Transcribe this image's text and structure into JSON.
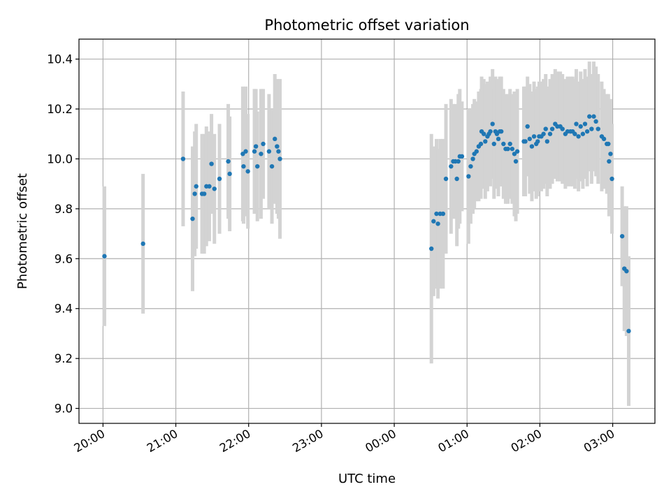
{
  "chart_data": {
    "type": "scatter",
    "title": "Photometric offset variation",
    "xlabel": "UTC time",
    "ylabel": "Photometric offset",
    "x_axis": {
      "kind": "time",
      "units": "hours UTC (values past 24 are the following day)",
      "ticks": [
        {
          "value": 20,
          "label": "20:00"
        },
        {
          "value": 21,
          "label": "21:00"
        },
        {
          "value": 22,
          "label": "22:00"
        },
        {
          "value": 23,
          "label": "23:00"
        },
        {
          "value": 24,
          "label": "00:00"
        },
        {
          "value": 25,
          "label": "01:00"
        },
        {
          "value": 26,
          "label": "02:00"
        },
        {
          "value": 27,
          "label": "03:00"
        }
      ],
      "range": [
        19.67,
        27.58
      ]
    },
    "y_axis": {
      "ticks": [
        {
          "value": 9.0,
          "label": "9.0"
        },
        {
          "value": 9.2,
          "label": "9.2"
        },
        {
          "value": 9.4,
          "label": "9.4"
        },
        {
          "value": 9.6,
          "label": "9.6"
        },
        {
          "value": 9.8,
          "label": "9.8"
        },
        {
          "value": 10.0,
          "label": "10.0"
        },
        {
          "value": 10.2,
          "label": "10.2"
        },
        {
          "value": 10.4,
          "label": "10.4"
        }
      ],
      "range": [
        8.94,
        10.48
      ]
    },
    "grid": true,
    "colors": {
      "points": "#1f77b4",
      "error_bars": "#d3d3d3",
      "grid": "#b0b0b0"
    },
    "series": [
      {
        "points": [
          [
            20.02,
            9.61,
            0.28
          ],
          [
            20.55,
            9.66,
            0.28
          ],
          [
            21.1,
            10.0,
            0.27
          ],
          [
            21.23,
            9.76,
            0.29
          ],
          [
            21.26,
            9.86,
            0.25
          ],
          [
            21.28,
            9.89,
            0.25
          ],
          [
            21.36,
            9.86,
            0.24
          ],
          [
            21.39,
            9.86,
            0.24
          ],
          [
            21.42,
            9.89,
            0.24
          ],
          [
            21.46,
            9.89,
            0.22
          ],
          [
            21.49,
            9.98,
            0.2
          ],
          [
            21.53,
            9.88,
            0.22
          ],
          [
            21.6,
            9.92,
            0.22
          ],
          [
            21.72,
            9.99,
            0.23
          ],
          [
            21.74,
            9.94,
            0.23
          ],
          [
            21.92,
            10.02,
            0.27
          ],
          [
            21.93,
            9.97,
            0.23
          ],
          [
            21.96,
            10.03,
            0.26
          ],
          [
            21.99,
            9.95,
            0.23
          ],
          [
            22.08,
            10.03,
            0.25
          ],
          [
            22.1,
            10.05,
            0.23
          ],
          [
            22.12,
            9.97,
            0.22
          ],
          [
            22.17,
            10.02,
            0.26
          ],
          [
            22.2,
            10.06,
            0.22
          ],
          [
            22.28,
            10.03,
            0.23
          ],
          [
            22.32,
            9.97,
            0.23
          ],
          [
            22.36,
            10.08,
            0.26
          ],
          [
            22.39,
            10.05,
            0.27
          ],
          [
            22.41,
            10.03,
            0.27
          ],
          [
            22.43,
            10.0,
            0.32
          ],
          [
            24.51,
            9.64,
            0.46
          ],
          [
            24.54,
            9.75,
            0.3
          ],
          [
            24.58,
            9.78,
            0.3
          ],
          [
            24.6,
            9.74,
            0.3
          ],
          [
            24.63,
            9.78,
            0.3
          ],
          [
            24.67,
            9.78,
            0.3
          ],
          [
            24.71,
            9.92,
            0.3
          ],
          [
            24.78,
            9.97,
            0.27
          ],
          [
            24.81,
            9.99,
            0.23
          ],
          [
            24.84,
            9.99,
            0.23
          ],
          [
            24.86,
            9.92,
            0.27
          ],
          [
            24.88,
            9.99,
            0.27
          ],
          [
            24.9,
            10.01,
            0.27
          ],
          [
            24.93,
            10.01,
            0.22
          ],
          [
            25.02,
            9.93,
            0.27
          ],
          [
            25.05,
            9.97,
            0.23
          ],
          [
            25.08,
            10.0,
            0.22
          ],
          [
            25.1,
            10.02,
            0.22
          ],
          [
            25.13,
            10.03,
            0.2
          ],
          [
            25.16,
            10.05,
            0.22
          ],
          [
            25.19,
            10.06,
            0.22
          ],
          [
            25.2,
            10.11,
            0.22
          ],
          [
            25.23,
            10.1,
            0.22
          ],
          [
            25.25,
            10.07,
            0.23
          ],
          [
            25.28,
            10.09,
            0.22
          ],
          [
            25.3,
            10.1,
            0.2
          ],
          [
            25.32,
            10.11,
            0.22
          ],
          [
            25.35,
            10.14,
            0.22
          ],
          [
            25.37,
            10.06,
            0.22
          ],
          [
            25.39,
            10.11,
            0.22
          ],
          [
            25.41,
            10.1,
            0.22
          ],
          [
            25.43,
            10.08,
            0.23
          ],
          [
            25.45,
            10.11,
            0.22
          ],
          [
            25.47,
            10.11,
            0.22
          ],
          [
            25.5,
            10.06,
            0.22
          ],
          [
            25.53,
            10.04,
            0.22
          ],
          [
            25.56,
            10.04,
            0.22
          ],
          [
            25.59,
            10.06,
            0.22
          ],
          [
            25.62,
            10.04,
            0.22
          ],
          [
            25.65,
            10.02,
            0.25
          ],
          [
            25.67,
            9.99,
            0.24
          ],
          [
            25.69,
            10.03,
            0.25
          ],
          [
            25.78,
            10.07,
            0.22
          ],
          [
            25.8,
            10.07,
            0.22
          ],
          [
            25.83,
            10.13,
            0.2
          ],
          [
            25.86,
            10.08,
            0.22
          ],
          [
            25.89,
            10.05,
            0.22
          ],
          [
            25.92,
            10.09,
            0.22
          ],
          [
            25.95,
            10.06,
            0.22
          ],
          [
            25.97,
            10.07,
            0.22
          ],
          [
            25.99,
            10.09,
            0.22
          ],
          [
            26.02,
            10.09,
            0.22
          ],
          [
            26.05,
            10.1,
            0.22
          ],
          [
            26.08,
            10.12,
            0.22
          ],
          [
            26.1,
            10.07,
            0.22
          ],
          [
            26.14,
            10.1,
            0.22
          ],
          [
            26.17,
            10.12,
            0.22
          ],
          [
            26.21,
            10.14,
            0.22
          ],
          [
            26.24,
            10.13,
            0.22
          ],
          [
            26.28,
            10.13,
            0.22
          ],
          [
            26.31,
            10.12,
            0.22
          ],
          [
            26.35,
            10.1,
            0.22
          ],
          [
            26.38,
            10.11,
            0.22
          ],
          [
            26.42,
            10.11,
            0.22
          ],
          [
            26.45,
            10.11,
            0.22
          ],
          [
            26.48,
            10.1,
            0.22
          ],
          [
            26.5,
            10.14,
            0.22
          ],
          [
            26.53,
            10.09,
            0.22
          ],
          [
            26.56,
            10.13,
            0.22
          ],
          [
            26.59,
            10.1,
            0.22
          ],
          [
            26.62,
            10.14,
            0.22
          ],
          [
            26.65,
            10.11,
            0.22
          ],
          [
            26.68,
            10.17,
            0.22
          ],
          [
            26.71,
            10.12,
            0.22
          ],
          [
            26.74,
            10.17,
            0.22
          ],
          [
            26.77,
            10.15,
            0.22
          ],
          [
            26.8,
            10.12,
            0.22
          ],
          [
            26.85,
            10.09,
            0.22
          ],
          [
            26.88,
            10.08,
            0.2
          ],
          [
            26.92,
            10.06,
            0.2
          ],
          [
            26.94,
            10.06,
            0.2
          ],
          [
            26.95,
            9.99,
            0.22
          ],
          [
            26.97,
            10.02,
            0.22
          ],
          [
            26.99,
            9.92,
            0.22
          ],
          [
            27.13,
            9.69,
            0.2
          ],
          [
            27.16,
            9.56,
            0.25
          ],
          [
            27.19,
            9.55,
            0.26
          ],
          [
            27.22,
            9.31,
            0.3
          ]
        ]
      }
    ]
  }
}
